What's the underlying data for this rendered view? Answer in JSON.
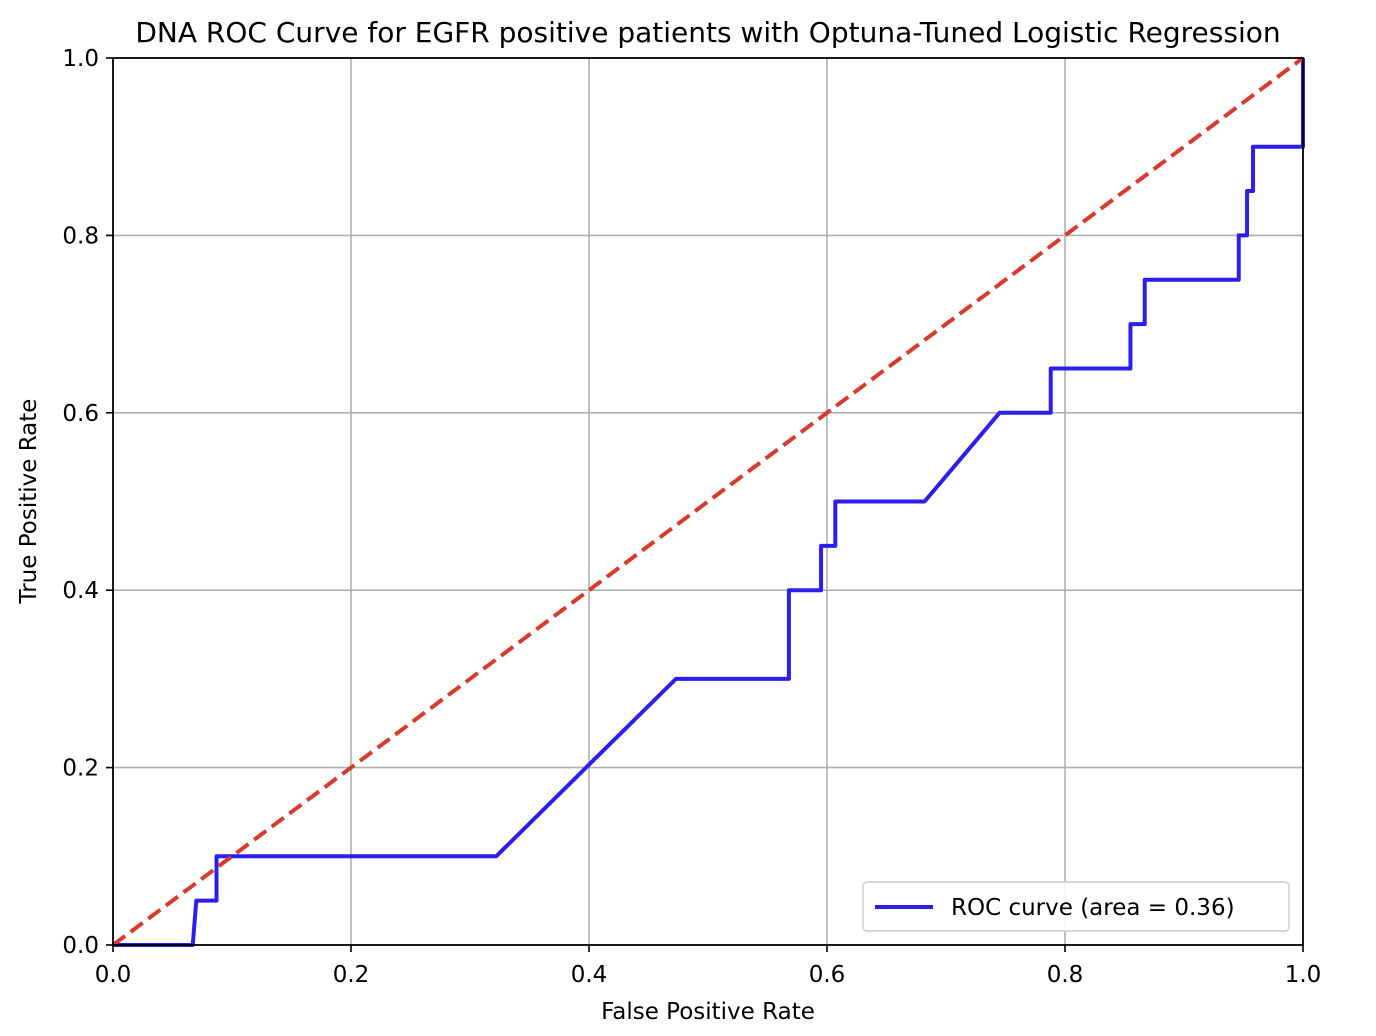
{
  "chart_data": {
    "type": "line",
    "title": "DNA ROC Curve for EGFR positive patients with Optuna-Tuned Logistic Regression",
    "xlabel": "False Positive Rate",
    "ylabel": "True Positive Rate",
    "xlim": [
      0.0,
      1.0
    ],
    "ylim": [
      0.0,
      1.0
    ],
    "xticks": [
      "0.0",
      "0.2",
      "0.4",
      "0.6",
      "0.8",
      "1.0"
    ],
    "yticks": [
      "0.0",
      "0.2",
      "0.4",
      "0.6",
      "0.8",
      "1.0"
    ],
    "grid": true,
    "legend_position": "lower right",
    "series": [
      {
        "name": "ROC curve (area = 0.36)",
        "color": "#2b1ff0",
        "style": "solid",
        "x": [
          0.0,
          0.067,
          0.07,
          0.07,
          0.087,
          0.087,
          0.322,
          0.473,
          0.568,
          0.568,
          0.595,
          0.595,
          0.607,
          0.607,
          0.682,
          0.745,
          0.788,
          0.788,
          0.855,
          0.855,
          0.867,
          0.867,
          0.946,
          0.946,
          0.953,
          0.953,
          0.958,
          0.958,
          1.0,
          1.0
        ],
        "y": [
          0.0,
          0.0,
          0.05,
          0.05,
          0.05,
          0.1,
          0.1,
          0.3,
          0.3,
          0.4,
          0.4,
          0.45,
          0.45,
          0.5,
          0.5,
          0.6,
          0.6,
          0.65,
          0.65,
          0.7,
          0.7,
          0.75,
          0.75,
          0.8,
          0.8,
          0.85,
          0.85,
          0.9,
          0.9,
          1.0
        ]
      },
      {
        "name": "",
        "color": "#d93a2b",
        "style": "dashed",
        "x": [
          0.0,
          1.0
        ],
        "y": [
          0.0,
          1.0
        ]
      }
    ]
  }
}
